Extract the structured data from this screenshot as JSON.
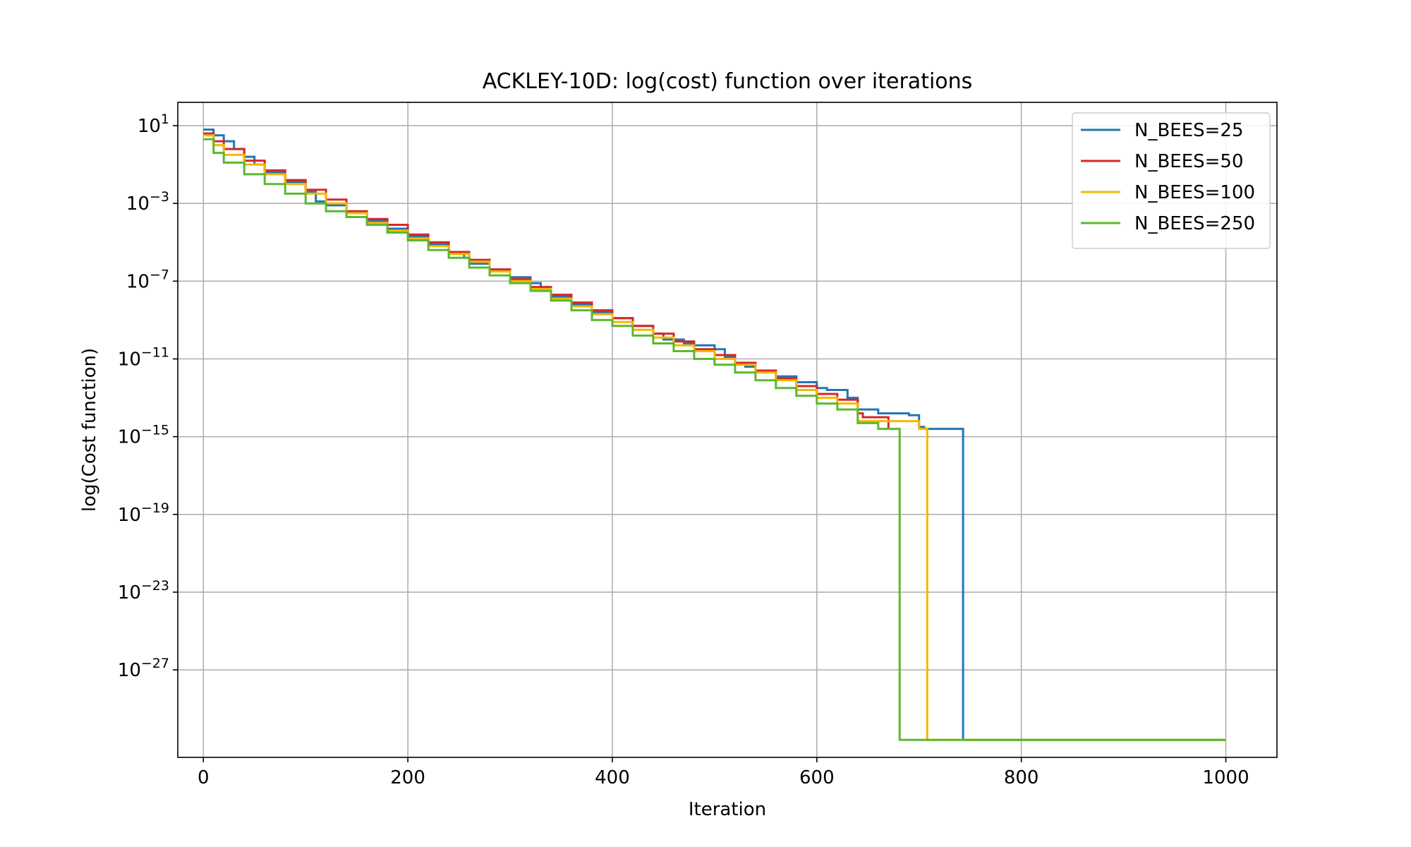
{
  "chart_data": {
    "type": "line",
    "title": "ACKLEY-10D: log(cost) function over iterations",
    "xlabel": "Iteration",
    "ylabel": "log(Cost function)",
    "xlim": [
      -25,
      1050
    ],
    "ylim_exponent": [
      -31.5,
      2.2
    ],
    "y_scale": "log",
    "grid": true,
    "legend_position": "top-right",
    "x_ticks": [
      0,
      200,
      400,
      600,
      800,
      1000
    ],
    "x_tick_labels": [
      "0",
      "200",
      "400",
      "600",
      "800",
      "1000"
    ],
    "y_tick_exponents": [
      1,
      -3,
      -7,
      -11,
      -15,
      -19,
      -23,
      -27
    ],
    "y_tick_base": "10",
    "y_tick_labels": [
      "1",
      "−3",
      "−7",
      "−11",
      "−15",
      "−19",
      "−23",
      "−27"
    ],
    "series": [
      {
        "name": "N_BEES=25",
        "color": "#1f77b4",
        "x": [
          0,
          10,
          20,
          30,
          40,
          50,
          60,
          80,
          100,
          110,
          120,
          140,
          160,
          180,
          200,
          220,
          240,
          255,
          260,
          280,
          300,
          320,
          330,
          340,
          360,
          380,
          400,
          420,
          440,
          450,
          470,
          480,
          500,
          510,
          520,
          530,
          540,
          560,
          580,
          600,
          610,
          630,
          640,
          660,
          690,
          700,
          705,
          743,
          743,
          1000
        ],
        "y_log10": [
          0.8,
          0.5,
          0.2,
          -0.2,
          -0.6,
          -1.0,
          -1.4,
          -1.9,
          -2.4,
          -2.9,
          -3.1,
          -3.5,
          -3.9,
          -4.3,
          -4.7,
          -5.1,
          -5.6,
          -5.8,
          -6.1,
          -6.4,
          -6.8,
          -7.1,
          -7.5,
          -7.8,
          -8.2,
          -8.6,
          -8.9,
          -9.3,
          -9.7,
          -10.0,
          -10.2,
          -10.3,
          -10.5,
          -10.9,
          -11.2,
          -11.4,
          -11.6,
          -11.9,
          -12.2,
          -12.5,
          -12.6,
          -13.0,
          -13.6,
          -13.8,
          -13.9,
          -14.5,
          -14.6,
          -14.6,
          -30.6,
          -30.6
        ]
      },
      {
        "name": "N_BEES=50",
        "color": "#d62728",
        "x": [
          0,
          10,
          20,
          40,
          60,
          80,
          100,
          120,
          140,
          160,
          180,
          200,
          220,
          240,
          260,
          280,
          300,
          320,
          340,
          360,
          380,
          400,
          420,
          440,
          460,
          480,
          500,
          520,
          540,
          560,
          580,
          600,
          620,
          640,
          645,
          665,
          670
        ],
        "y_log10": [
          0.6,
          0.2,
          -0.2,
          -0.8,
          -1.3,
          -1.8,
          -2.3,
          -2.8,
          -3.4,
          -3.8,
          -4.1,
          -4.6,
          -5.0,
          -5.5,
          -5.9,
          -6.4,
          -6.9,
          -7.3,
          -7.7,
          -8.1,
          -8.5,
          -8.9,
          -9.3,
          -9.7,
          -10.1,
          -10.5,
          -10.8,
          -11.2,
          -11.6,
          -12.0,
          -12.4,
          -12.8,
          -13.1,
          -13.8,
          -14.0,
          -14.0,
          -14.6
        ]
      },
      {
        "name": "N_BEES=100",
        "color": "#f5b800",
        "x": [
          0,
          10,
          20,
          40,
          60,
          80,
          100,
          120,
          140,
          160,
          180,
          200,
          220,
          240,
          260,
          280,
          300,
          320,
          340,
          360,
          380,
          400,
          420,
          440,
          460,
          480,
          500,
          520,
          540,
          560,
          580,
          600,
          620,
          640,
          670,
          700,
          708,
          708,
          1000
        ],
        "y_log10": [
          0.5,
          0.0,
          -0.5,
          -1.0,
          -1.5,
          -2.0,
          -2.5,
          -3.0,
          -3.5,
          -4.0,
          -4.4,
          -4.8,
          -5.2,
          -5.6,
          -6.0,
          -6.5,
          -7.0,
          -7.4,
          -7.9,
          -8.3,
          -8.7,
          -9.1,
          -9.5,
          -9.9,
          -10.3,
          -10.6,
          -11.0,
          -11.3,
          -11.7,
          -12.1,
          -12.6,
          -13.0,
          -13.3,
          -14.2,
          -14.2,
          -14.6,
          -14.6,
          -30.6,
          -30.6
        ]
      },
      {
        "name": "N_BEES=250",
        "color": "#5cb82e",
        "x": [
          0,
          10,
          20,
          40,
          60,
          80,
          100,
          120,
          140,
          160,
          180,
          200,
          220,
          240,
          260,
          280,
          300,
          320,
          340,
          360,
          380,
          400,
          420,
          440,
          460,
          480,
          500,
          520,
          540,
          560,
          580,
          600,
          620,
          640,
          660,
          681,
          681,
          1000
        ],
        "y_log10": [
          0.3,
          -0.4,
          -0.9,
          -1.5,
          -2.0,
          -2.5,
          -3.0,
          -3.4,
          -3.7,
          -4.1,
          -4.5,
          -4.9,
          -5.4,
          -5.8,
          -6.3,
          -6.7,
          -7.1,
          -7.5,
          -8.0,
          -8.5,
          -9.0,
          -9.3,
          -9.8,
          -10.2,
          -10.6,
          -11.0,
          -11.3,
          -11.7,
          -12.1,
          -12.5,
          -12.9,
          -13.3,
          -13.6,
          -14.3,
          -14.6,
          -14.6,
          -30.6,
          -30.6
        ]
      }
    ]
  }
}
